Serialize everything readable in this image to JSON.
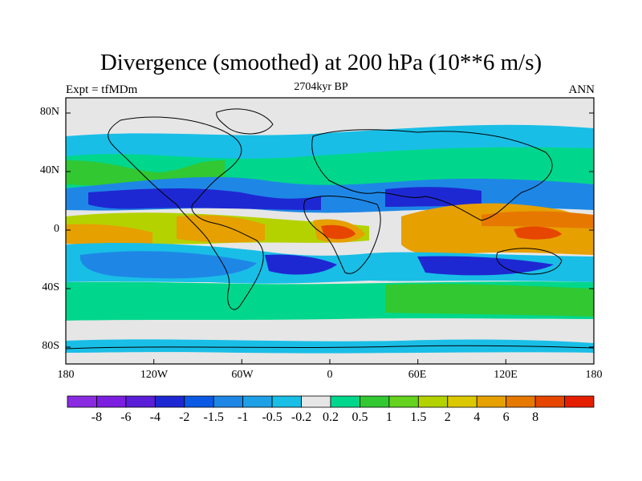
{
  "title": "Divergence (smoothed) at 200 hPa (10**6 m/s)",
  "subtitle_left": "Expt = tfMDm",
  "subtitle_center": "2704kyr BP",
  "subtitle_right": "ANN",
  "lat_labels": [
    "80N",
    "40N",
    "0",
    "40S",
    "80S"
  ],
  "lon_labels": [
    "180",
    "120W",
    "60W",
    "0",
    "60E",
    "120E",
    "180"
  ],
  "colorbar": {
    "colors": [
      "#8a2be2",
      "#7c1ee0",
      "#5a1ed8",
      "#1e28d2",
      "#0a5ae6",
      "#1e87e6",
      "#1ea0e6",
      "#19bee6",
      "#e6e6e6",
      "#00d78c",
      "#32c832",
      "#64d21e",
      "#b4d200",
      "#dcc800",
      "#e6a000",
      "#e67800",
      "#e64600",
      "#e61e00"
    ],
    "labels": [
      "-8",
      "-6",
      "-4",
      "-2",
      "-1.5",
      "-1",
      "-0.5",
      "-0.2",
      "0.2",
      "0.5",
      "1",
      "1.5",
      "2",
      "4",
      "6",
      "8"
    ]
  }
}
